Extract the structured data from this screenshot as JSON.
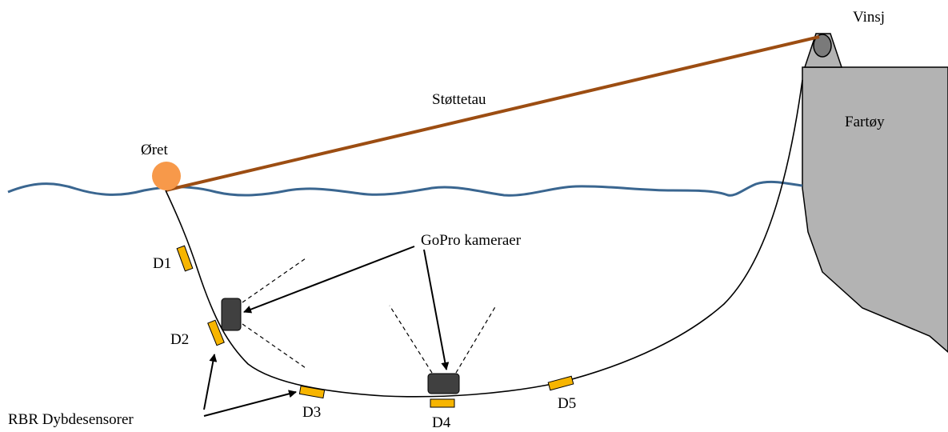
{
  "labels": {
    "winch": "Vinsj",
    "support_rope": "Støttetau",
    "vessel": "Fartøy",
    "buoy": "Øret",
    "cameras": "GoPro kameraer",
    "depth_sensors": "RBR Dybdesensorer",
    "d1": "D1",
    "d2": "D2",
    "d3": "D3",
    "d4": "D4",
    "d5": "D5"
  },
  "colors": {
    "water": "#3a6690",
    "rope": "#9c4d12",
    "buoy": "#f7994a",
    "vessel": "#b3b3b3",
    "sensor": "#f7b500",
    "camera": "#404040"
  }
}
